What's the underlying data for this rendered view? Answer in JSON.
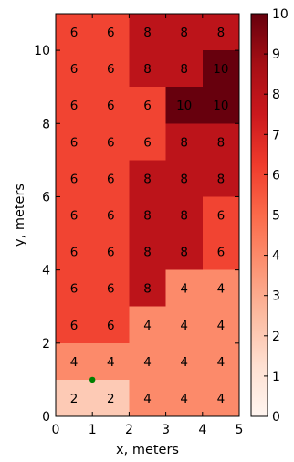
{
  "chart_data": {
    "type": "heatmap",
    "xlabel": "x, meters",
    "ylabel": "y, meters",
    "xlim": [
      0,
      5
    ],
    "ylim": [
      0,
      11
    ],
    "x_edges": [
      0,
      1,
      2,
      3,
      4,
      5
    ],
    "y_edges": [
      0,
      1,
      2,
      3,
      4,
      5,
      6,
      7,
      8,
      9,
      10,
      11
    ],
    "x_ticks": [
      0,
      1,
      2,
      3,
      4,
      5
    ],
    "y_ticks": [
      0,
      2,
      4,
      6,
      8,
      10
    ],
    "rows_top_to_bottom": [
      [
        6,
        6,
        8,
        8,
        8
      ],
      [
        6,
        6,
        8,
        8,
        10
      ],
      [
        6,
        6,
        6,
        10,
        10
      ],
      [
        6,
        6,
        6,
        8,
        8
      ],
      [
        6,
        6,
        8,
        8,
        8
      ],
      [
        6,
        6,
        8,
        8,
        6
      ],
      [
        6,
        6,
        8,
        8,
        6
      ],
      [
        6,
        6,
        8,
        4,
        4
      ],
      [
        6,
        6,
        4,
        4,
        4
      ],
      [
        4,
        4,
        4,
        4,
        4
      ],
      [
        2,
        2,
        4,
        4,
        4
      ]
    ],
    "colormap": "Reds",
    "colorbar": {
      "min": 0,
      "max": 10,
      "ticks": [
        0,
        1,
        2,
        3,
        4,
        5,
        6,
        7,
        8,
        9,
        10
      ]
    },
    "marker": {
      "x": 1,
      "y": 1,
      "color": "#008000"
    },
    "grid": false
  }
}
